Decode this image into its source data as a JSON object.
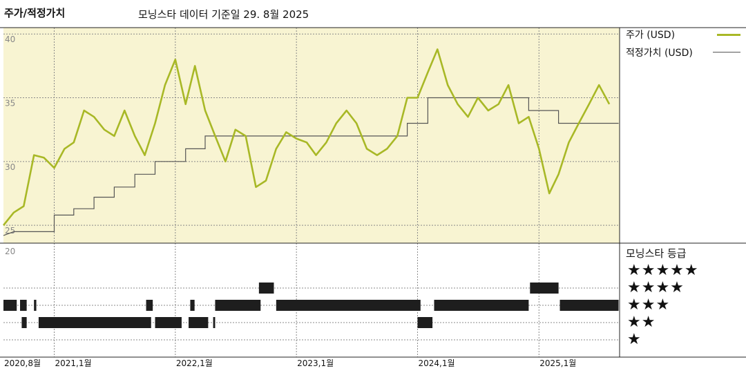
{
  "header": {
    "title": "주가/적정가치",
    "subtitle": "모닝스타 데이터 기준일 29. 8월 2025"
  },
  "legend": {
    "price_label": "주가 (USD)",
    "fair_label": "적정가치 (USD)"
  },
  "rating_panel": {
    "title": "모닝스타 등급",
    "levels": [
      "★★★★★",
      "★★★★",
      "★★★",
      "★★",
      "★"
    ]
  },
  "chart_data": {
    "type": "line",
    "title": "주가/적정가치",
    "colors": {
      "price": "#a8b826",
      "fair_value": "#555555",
      "plot_bg": "#f8f4d2",
      "rating_bar": "#1e1e1e"
    },
    "y_axis": {
      "ylim": [
        23.6,
        40.5
      ],
      "ticks": [
        {
          "value": 40,
          "label": "40"
        },
        {
          "value": 35,
          "label": "35"
        },
        {
          "value": 30,
          "label": "30"
        },
        {
          "value": 25,
          "label": "25"
        }
      ]
    },
    "rating_axis_label": "20",
    "x_axis": {
      "range": [
        "2020-08-01",
        "2025-09-01"
      ],
      "ticks": [
        {
          "date": "2020-08-01",
          "label": "2020,8월"
        },
        {
          "date": "2021-01-01",
          "label": "2021,1월"
        },
        {
          "date": "2022-01-01",
          "label": "2022,1월"
        },
        {
          "date": "2023-01-01",
          "label": "2023,1월"
        },
        {
          "date": "2024-01-01",
          "label": "2024,1월"
        },
        {
          "date": "2025-01-01",
          "label": "2025,1월"
        }
      ]
    },
    "series": [
      {
        "name": "주가 (USD)",
        "points": [
          [
            "2020-08-01",
            25.0
          ],
          [
            "2020-09-01",
            26.0
          ],
          [
            "2020-10-01",
            26.5
          ],
          [
            "2020-11-01",
            30.5
          ],
          [
            "2020-12-01",
            30.3
          ],
          [
            "2021-01-01",
            29.5
          ],
          [
            "2021-02-01",
            31.0
          ],
          [
            "2021-03-01",
            31.5
          ],
          [
            "2021-04-01",
            34.0
          ],
          [
            "2021-05-01",
            33.5
          ],
          [
            "2021-06-01",
            32.5
          ],
          [
            "2021-07-01",
            32.0
          ],
          [
            "2021-08-01",
            34.0
          ],
          [
            "2021-09-01",
            32.0
          ],
          [
            "2021-10-01",
            30.5
          ],
          [
            "2021-11-01",
            33.0
          ],
          [
            "2021-12-01",
            36.0
          ],
          [
            "2022-01-01",
            38.0
          ],
          [
            "2022-02-01",
            34.5
          ],
          [
            "2022-03-01",
            37.5
          ],
          [
            "2022-04-01",
            34.0
          ],
          [
            "2022-05-01",
            32.0
          ],
          [
            "2022-06-01",
            30.0
          ],
          [
            "2022-07-01",
            32.5
          ],
          [
            "2022-08-01",
            32.0
          ],
          [
            "2022-09-01",
            28.0
          ],
          [
            "2022-10-01",
            28.5
          ],
          [
            "2022-11-01",
            31.0
          ],
          [
            "2022-12-01",
            32.3
          ],
          [
            "2023-01-01",
            31.8
          ],
          [
            "2023-02-01",
            31.5
          ],
          [
            "2023-03-01",
            30.5
          ],
          [
            "2023-04-01",
            31.5
          ],
          [
            "2023-05-01",
            33.0
          ],
          [
            "2023-06-01",
            34.0
          ],
          [
            "2023-07-01",
            33.0
          ],
          [
            "2023-08-01",
            31.0
          ],
          [
            "2023-09-01",
            30.5
          ],
          [
            "2023-10-01",
            31.0
          ],
          [
            "2023-11-01",
            32.0
          ],
          [
            "2023-12-01",
            35.0
          ],
          [
            "2024-01-01",
            35.0
          ],
          [
            "2024-02-01",
            37.0
          ],
          [
            "2024-03-01",
            38.8
          ],
          [
            "2024-04-01",
            36.0
          ],
          [
            "2024-05-01",
            34.5
          ],
          [
            "2024-06-01",
            33.5
          ],
          [
            "2024-07-01",
            35.0
          ],
          [
            "2024-08-01",
            34.0
          ],
          [
            "2024-09-01",
            34.5
          ],
          [
            "2024-10-01",
            36.0
          ],
          [
            "2024-11-01",
            33.0
          ],
          [
            "2024-12-01",
            33.5
          ],
          [
            "2025-01-01",
            31.0
          ],
          [
            "2025-02-01",
            27.5
          ],
          [
            "2025-03-01",
            29.0
          ],
          [
            "2025-04-01",
            31.5
          ],
          [
            "2025-05-01",
            33.0
          ],
          [
            "2025-06-01",
            34.5
          ],
          [
            "2025-07-01",
            36.0
          ],
          [
            "2025-08-01",
            34.5
          ]
        ]
      },
      {
        "name": "적정가치 (USD)",
        "points": [
          [
            "2020-08-01",
            24.2
          ],
          [
            "2020-09-01",
            24.5
          ],
          [
            "2021-01-01",
            24.5
          ],
          [
            "2021-01-01",
            25.8
          ],
          [
            "2021-03-01",
            25.8
          ],
          [
            "2021-03-01",
            26.3
          ],
          [
            "2021-05-01",
            26.3
          ],
          [
            "2021-05-01",
            27.2
          ],
          [
            "2021-07-01",
            27.2
          ],
          [
            "2021-07-01",
            28.0
          ],
          [
            "2021-09-01",
            28.0
          ],
          [
            "2021-09-01",
            29.0
          ],
          [
            "2021-11-01",
            29.0
          ],
          [
            "2021-11-01",
            30.0
          ],
          [
            "2022-02-01",
            30.0
          ],
          [
            "2022-02-01",
            31.0
          ],
          [
            "2022-04-01",
            31.0
          ],
          [
            "2022-04-01",
            32.0
          ],
          [
            "2023-12-01",
            32.0
          ],
          [
            "2023-12-01",
            33.0
          ],
          [
            "2024-02-01",
            33.0
          ],
          [
            "2024-02-01",
            35.0
          ],
          [
            "2024-12-01",
            35.0
          ],
          [
            "2024-12-01",
            34.0
          ],
          [
            "2025-03-01",
            34.0
          ],
          [
            "2025-03-01",
            33.0
          ],
          [
            "2025-08-29",
            33.0
          ]
        ]
      }
    ],
    "rating_periods": [
      {
        "stars": 3,
        "start": "2020-08-01",
        "end": "2020-09-10"
      },
      {
        "stars": 3,
        "start": "2020-09-20",
        "end": "2020-10-10"
      },
      {
        "stars": 3,
        "start": "2020-11-01",
        "end": "2020-11-08"
      },
      {
        "stars": 2,
        "start": "2020-09-25",
        "end": "2020-10-10"
      },
      {
        "stars": 2,
        "start": "2020-11-15",
        "end": "2021-10-20"
      },
      {
        "stars": 3,
        "start": "2021-10-05",
        "end": "2021-10-25"
      },
      {
        "stars": 2,
        "start": "2021-11-01",
        "end": "2022-01-20"
      },
      {
        "stars": 3,
        "start": "2022-02-15",
        "end": "2022-02-28"
      },
      {
        "stars": 2,
        "start": "2022-02-10",
        "end": "2022-04-10"
      },
      {
        "stars": 2,
        "start": "2022-04-25",
        "end": "2022-05-01"
      },
      {
        "stars": 3,
        "start": "2022-05-01",
        "end": "2022-09-15"
      },
      {
        "stars": 4,
        "start": "2022-09-10",
        "end": "2022-10-25"
      },
      {
        "stars": 3,
        "start": "2022-11-01",
        "end": "2024-01-10"
      },
      {
        "stars": 2,
        "start": "2024-01-01",
        "end": "2024-02-15"
      },
      {
        "stars": 3,
        "start": "2024-02-20",
        "end": "2024-12-01"
      },
      {
        "stars": 4,
        "start": "2024-12-05",
        "end": "2025-03-01"
      },
      {
        "stars": 3,
        "start": "2025-03-05",
        "end": "2025-08-29"
      }
    ]
  }
}
